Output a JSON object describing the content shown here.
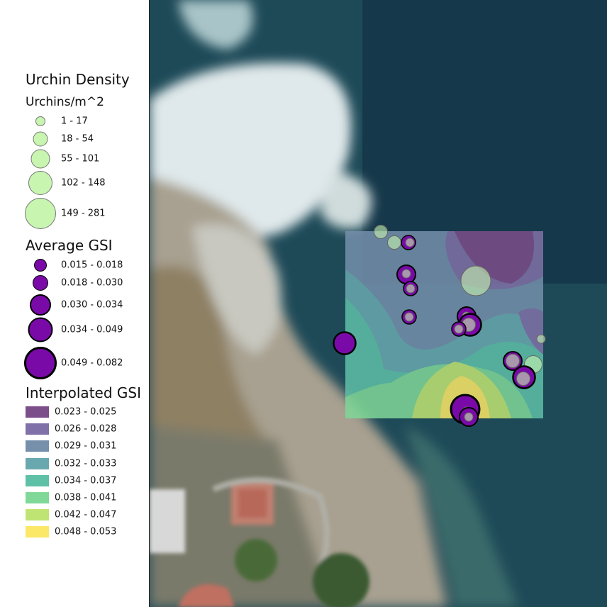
{
  "legend": {
    "urchin": {
      "title": "Urchin Density",
      "subtitle": "Urchins/m^2",
      "color": "#c8f5b0",
      "classes": [
        "1 - 17",
        "18 - 54",
        "55 - 101",
        "102 - 148",
        "149 - 281"
      ]
    },
    "gsi": {
      "title": "Average GSI",
      "color": "#7a0aa8",
      "classes": [
        "0.015 - 0.018",
        "0.018 - 0.030",
        "0.030 - 0.034",
        "0.034 - 0.049",
        "0.049 - 0.082"
      ]
    },
    "interp": {
      "title": "Interpolated GSI",
      "classes": [
        {
          "label": "0.023 - 0.025",
          "color": "#7d4f8a"
        },
        {
          "label": "0.026 - 0.028",
          "color": "#8072a8"
        },
        {
          "label": "0.029 - 0.031",
          "color": "#7690ac"
        },
        {
          "label": "0.032 - 0.033",
          "color": "#6aa8b0"
        },
        {
          "label": "0.034 - 0.037",
          "color": "#5fc0a8"
        },
        {
          "label": "0.038 - 0.041",
          "color": "#80d898"
        },
        {
          "label": "0.042 - 0.047",
          "color": "#c0e474"
        },
        {
          "label": "0.048 - 0.053",
          "color": "#fbe866"
        }
      ]
    }
  }
}
